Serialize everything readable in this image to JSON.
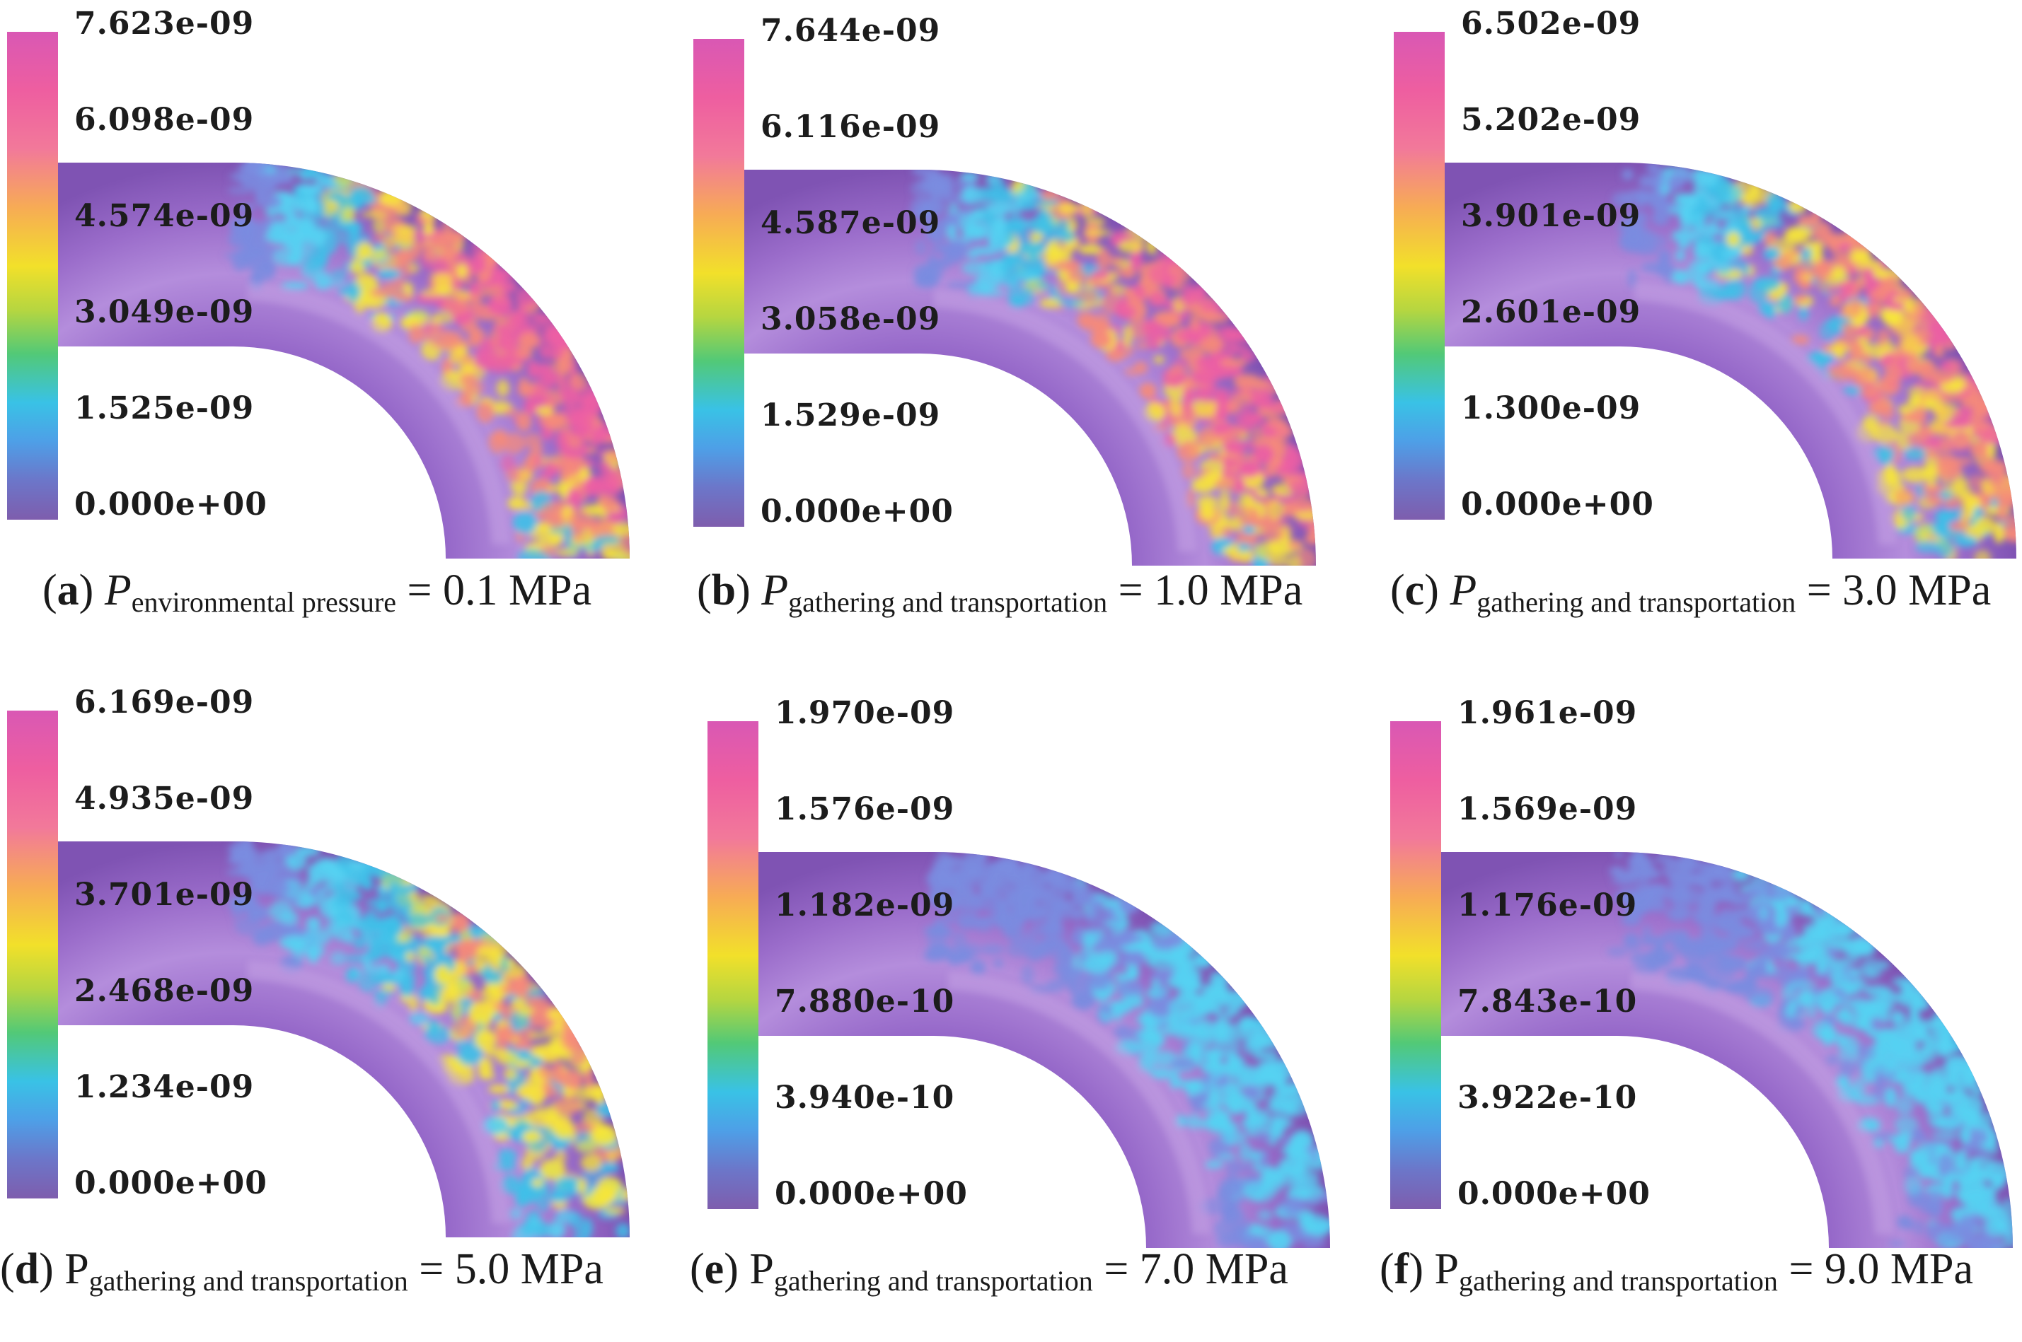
{
  "panels": [
    {
      "letter": "a",
      "symbol": "P",
      "subscript": "environmental pressure",
      "value_text": "= 0.1 MPa",
      "colorbar_ticks": [
        "7.623e-09",
        "6.098e-09",
        "4.574e-09",
        "3.049e-09",
        "1.525e-09",
        "0.000e+00"
      ],
      "hotspot_intensity": 1.0
    },
    {
      "letter": "b",
      "symbol": "P",
      "subscript": "gathering and transportation",
      "value_text": "= 1.0 MPa",
      "colorbar_ticks": [
        "7.644e-09",
        "6.116e-09",
        "4.587e-09",
        "3.058e-09",
        "1.529e-09",
        "0.000e+00"
      ],
      "hotspot_intensity": 1.0
    },
    {
      "letter": "c",
      "symbol": "P",
      "subscript": "gathering and transportation",
      "value_text": "= 3.0 MPa",
      "colorbar_ticks": [
        "6.502e-09",
        "5.202e-09",
        "3.901e-09",
        "2.601e-09",
        "1.300e-09",
        "0.000e+00"
      ],
      "hotspot_intensity": 0.85
    },
    {
      "letter": "d",
      "symbol": "P",
      "subscript": "gathering and transportation",
      "value_text": "= 5.0 MPa",
      "colorbar_ticks": [
        "6.169e-09",
        "4.935e-09",
        "3.701e-09",
        "2.468e-09",
        "1.234e-09",
        "0.000e+00"
      ],
      "hotspot_intensity": 0.65
    },
    {
      "letter": "e",
      "symbol": "P",
      "subscript": "gathering and transportation",
      "value_text": "= 7.0 MPa",
      "colorbar_ticks": [
        "1.970e-09",
        "1.576e-09",
        "1.182e-09",
        "7.880e-10",
        "3.940e-10",
        "0.000e+00"
      ],
      "hotspot_intensity": 0.25
    },
    {
      "letter": "f",
      "symbol": "P",
      "subscript": "gathering and transportation",
      "value_text": "= 9.0 MPa",
      "colorbar_ticks": [
        "1.961e-09",
        "1.569e-09",
        "1.176e-09",
        "7.843e-10",
        "3.922e-10",
        "0.000e+00"
      ],
      "hotspot_intensity": 0.25
    }
  ],
  "colors": {
    "pipe_base": "#8c5fc0",
    "pipe_highlight": "#c9a7e6",
    "hot": "#ec5fa4",
    "warm": "#f6e53a",
    "mid": "#3ec0e8",
    "cool": "#55d2f2"
  }
}
